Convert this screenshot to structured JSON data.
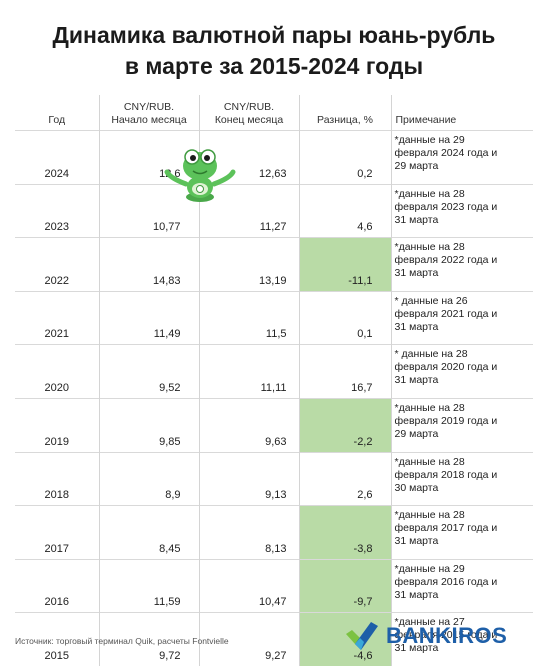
{
  "title": {
    "line1": "Динамика валютной пары юань-рубль",
    "line2": "в марте за 2015-2024 годы"
  },
  "table": {
    "headers": {
      "year": "Год",
      "start_line1": "CNY/RUB.",
      "start_line2": "Начало месяца",
      "end_line1": "CNY/RUB.",
      "end_line2": "Конец месяца",
      "diff": "Разница, %",
      "note": "Примечание"
    },
    "rows": [
      {
        "year": "2024",
        "start": "12,6",
        "end": "12,63",
        "diff": "0,2",
        "note": "*данные на 29\nфевраля 2024 года и\n29 марта"
      },
      {
        "year": "2023",
        "start": "10,77",
        "end": "11,27",
        "diff": "4,6",
        "note": "*данные на  28\nфевраля 2023 года и\n31 марта"
      },
      {
        "year": "2022",
        "start": "14,83",
        "end": "13,19",
        "diff": "-11,1",
        "note": "*данные на 28\nфевраля 2022 года и\n31 марта"
      },
      {
        "year": "2021",
        "start": "11,49",
        "end": "11,5",
        "diff": "0,1",
        "note": "* данные на 26\nфевраля 2021 года  и\n31 марта"
      },
      {
        "year": "2020",
        "start": "9,52",
        "end": "11,11",
        "diff": "16,7",
        "note": "* данные на  28\nфевраля 2020 года и\n31 марта"
      },
      {
        "year": "2019",
        "start": "9,85",
        "end": "9,63",
        "diff": "-2,2",
        "note": "*данные на 28\nфевраля 2019 года и\n29 марта"
      },
      {
        "year": "2018",
        "start": "8,9",
        "end": "9,13",
        "diff": "2,6",
        "note": "*данные на  28\nфевраля 2018 года и\n30 марта"
      },
      {
        "year": "2017",
        "start": "8,45",
        "end": "8,13",
        "diff": "-3,8",
        "note": "*данные на 28\nфевраля 2017 года и\n31 марта"
      },
      {
        "year": "2016",
        "start": "11,59",
        "end": "10,47",
        "diff": "-9,7",
        "note": "*данные на 29\nфевраля 2016 года и\n31 марта"
      },
      {
        "year": "2015",
        "start": "9,72",
        "end": "9,27",
        "diff": "-4,6",
        "note": "*данные на 27\nфевраля 2015 года и\n31 марта"
      }
    ]
  },
  "footer": {
    "source": "Источник: торговый терминал Quik, расчеты Fontvielle",
    "brand": "BANKIROS"
  },
  "colors": {
    "negative_highlight": "#b9dba6",
    "brand_blue": "#1e5fa8",
    "brand_green": "#7cc242",
    "mascot_green": "#5cc25a"
  },
  "icons": {
    "mascot": "frog-mascot",
    "brand_logo": "bankiros-check-logo"
  }
}
